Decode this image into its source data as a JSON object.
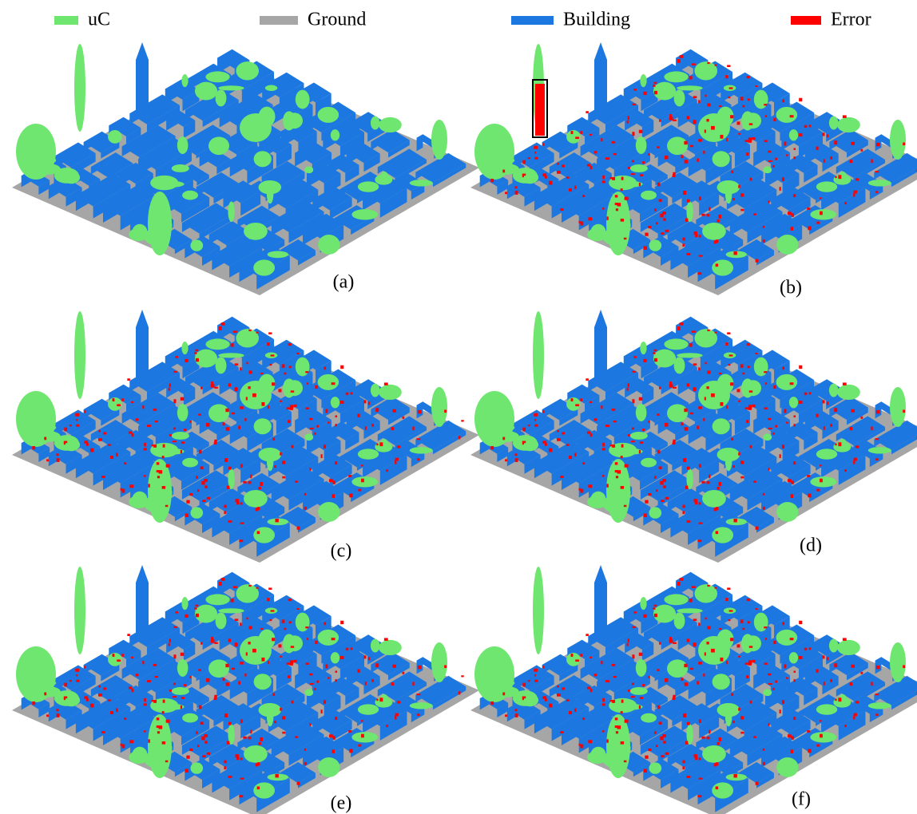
{
  "legend": [
    {
      "label": "uC",
      "color": "#6fe66f"
    },
    {
      "label": "Ground",
      "color": "#a6a6a6"
    },
    {
      "label": "Building",
      "color": "#1c78e0"
    },
    {
      "label": "Error",
      "color": "#ff0000"
    }
  ],
  "panels": [
    {
      "label": "(a)"
    },
    {
      "label": "(b)"
    },
    {
      "label": "(c)"
    },
    {
      "label": "(d)"
    },
    {
      "label": "(e)"
    },
    {
      "label": "(f)"
    }
  ]
}
